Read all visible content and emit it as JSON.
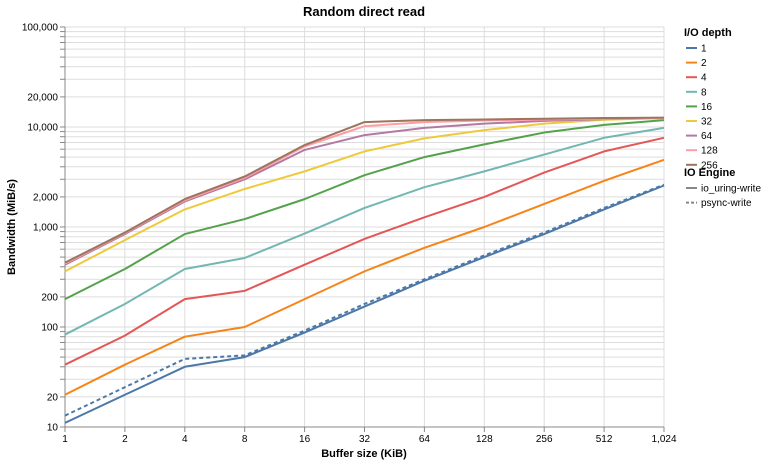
{
  "chart_data": {
    "type": "line",
    "title": "Random direct read",
    "xlabel": "Buffer size (KiB)",
    "ylabel": "Bandwidth (MiB/s)",
    "x_scale": "log2",
    "y_scale": "log10",
    "x": [
      1,
      2,
      4,
      8,
      16,
      32,
      64,
      128,
      256,
      512,
      1024
    ],
    "x_tick_labels": [
      "1",
      "2",
      "4",
      "8",
      "16",
      "32",
      "64",
      "128",
      "256",
      "512",
      "1,024"
    ],
    "xlim": [
      1,
      1024
    ],
    "ylim": [
      10,
      100000
    ],
    "y_ticks": [
      10,
      20,
      100,
      200,
      1000,
      2000,
      10000,
      20000,
      100000
    ],
    "y_tick_labels": [
      "10",
      "20",
      "100",
      "200",
      "1,000",
      "2,000",
      "10,000",
      "20,000",
      "100,000"
    ],
    "grid": true,
    "legend_placement": "right",
    "legend_color_title": "I/O depth",
    "legend_dash_title": "IO Engine",
    "series": [
      {
        "name": "1",
        "color": "#4c78a8",
        "engine": "io_uring-write",
        "values": [
          11,
          21,
          40,
          50,
          88,
          160,
          290,
          500,
          850,
          1500,
          2600
        ]
      },
      {
        "name": "1",
        "color": "#4c78a8",
        "engine": "psync-write",
        "values": [
          13,
          25,
          48,
          52,
          92,
          170,
          300,
          520,
          880,
          1550,
          2650
        ]
      },
      {
        "name": "2",
        "color": "#f58518",
        "values": [
          21,
          42,
          80,
          100,
          190,
          360,
          620,
          1000,
          1700,
          2900,
          4700
        ]
      },
      {
        "name": "4",
        "color": "#e45756",
        "values": [
          42,
          82,
          190,
          230,
          420,
          760,
          1250,
          2000,
          3500,
          5700,
          7800
        ]
      },
      {
        "name": "8",
        "color": "#72b7b2",
        "values": [
          84,
          170,
          380,
          490,
          860,
          1550,
          2500,
          3600,
          5300,
          7800,
          9800
        ]
      },
      {
        "name": "16",
        "color": "#54a24b",
        "values": [
          190,
          380,
          850,
          1200,
          1900,
          3300,
          5000,
          6700,
          8800,
          10500,
          11700
        ]
      },
      {
        "name": "32",
        "color": "#eeca3b",
        "values": [
          360,
          740,
          1500,
          2400,
          3600,
          5700,
          7700,
          9300,
          10800,
          11800,
          12300
        ]
      },
      {
        "name": "64",
        "color": "#b279a2",
        "values": [
          420,
          850,
          1800,
          3000,
          5900,
          8300,
          9800,
          10800,
          11500,
          12000,
          12300
        ]
      },
      {
        "name": "128",
        "color": "#ff9da6",
        "values": [
          430,
          870,
          1850,
          3100,
          6400,
          10200,
          11200,
          11600,
          11900,
          12100,
          12300
        ]
      },
      {
        "name": "256",
        "color": "#9d755d",
        "values": [
          440,
          880,
          1900,
          3200,
          6600,
          11200,
          11700,
          11900,
          12100,
          12300,
          12400
        ]
      }
    ],
    "legend_engines": [
      {
        "name": "io_uring-write",
        "dash": "solid"
      },
      {
        "name": "psync-write",
        "dash": "dashed"
      }
    ],
    "legend_depths": [
      {
        "name": "1",
        "color": "#4c78a8"
      },
      {
        "name": "2",
        "color": "#f58518"
      },
      {
        "name": "4",
        "color": "#e45756"
      },
      {
        "name": "8",
        "color": "#72b7b2"
      },
      {
        "name": "16",
        "color": "#54a24b"
      },
      {
        "name": "32",
        "color": "#eeca3b"
      },
      {
        "name": "64",
        "color": "#b279a2"
      },
      {
        "name": "128",
        "color": "#ff9da6"
      },
      {
        "name": "256",
        "color": "#9d755d"
      }
    ]
  }
}
